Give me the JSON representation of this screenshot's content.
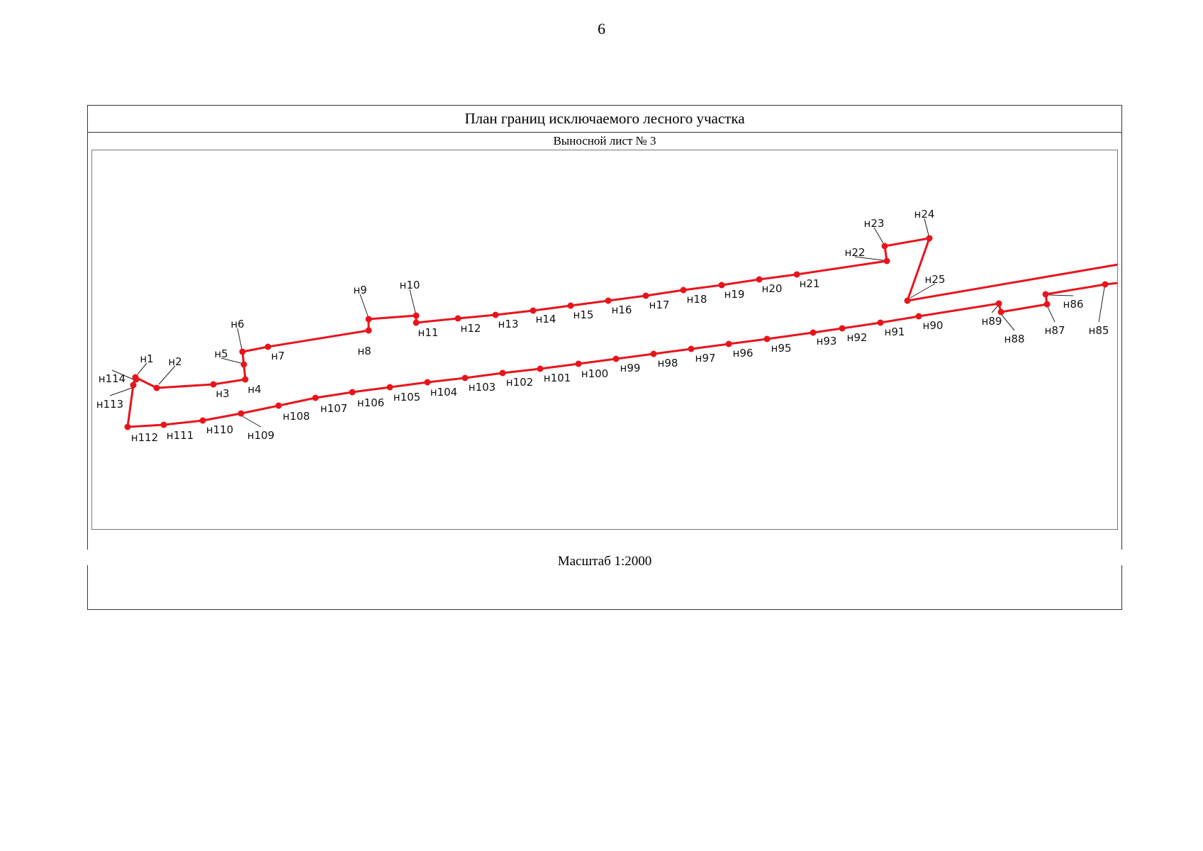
{
  "page_number": "6",
  "title": "План границ исключаемого лесного участка",
  "subtitle": "Выносной лист № 3",
  "scale_label": "Масштаб 1:2000",
  "colors": {
    "boundary": "#e8141c",
    "label": "#111111",
    "frame": "#333333"
  },
  "boundary_outer": [
    "н113",
    "н1",
    "н2",
    "н3",
    "н4",
    "н5",
    "н6",
    "н7",
    "н8",
    "н9",
    "н10",
    "н11",
    "н12",
    "н13",
    "н14",
    "н15",
    "н16",
    "н17",
    "н18",
    "н19",
    "н20",
    "н21",
    "н22",
    "н23",
    "н24",
    "н25"
  ],
  "boundary_inner": [
    "н85",
    "н86",
    "н87",
    "н88",
    "н89",
    "н90",
    "н91",
    "н92",
    "н93",
    "н95",
    "н96",
    "н97",
    "н98",
    "н99",
    "н100",
    "н101",
    "н102",
    "н103",
    "н104",
    "н105",
    "н106",
    "н107",
    "н108",
    "н109",
    "н110",
    "н111",
    "н112",
    "н113"
  ],
  "point_labels": [
    "н1",
    "н2",
    "н3",
    "н4",
    "н5",
    "н6",
    "н7",
    "н8",
    "н9",
    "н10",
    "н11",
    "н12",
    "н13",
    "н14",
    "н15",
    "н16",
    "н17",
    "н18",
    "н19",
    "н20",
    "н21",
    "н22",
    "н23",
    "н24",
    "н25",
    "н85",
    "н86",
    "н87",
    "н88",
    "н89",
    "н90",
    "н91",
    "н92",
    "н93",
    "н95",
    "н96",
    "н97",
    "н98",
    "н99",
    "н100",
    "н101",
    "н102",
    "н103",
    "н104",
    "н105",
    "н106",
    "н107",
    "н108",
    "н109",
    "н110",
    "н111",
    "н112",
    "н113",
    "н114"
  ]
}
